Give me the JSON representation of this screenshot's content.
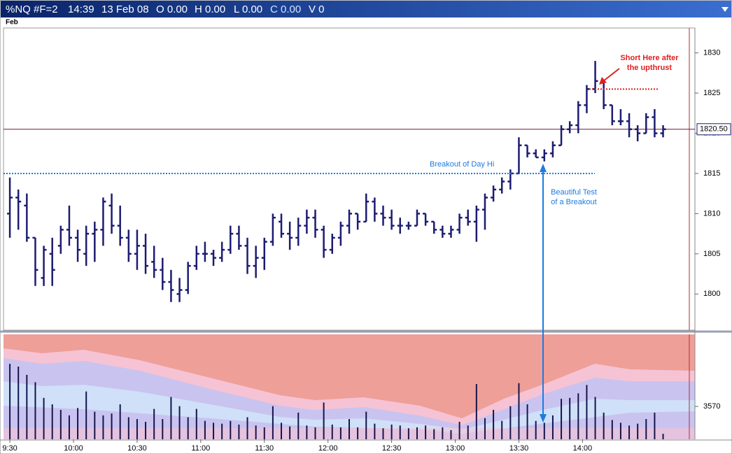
{
  "header": {
    "symbol": "%NQ #F=2",
    "time": "14:39",
    "date": "13 Feb 08",
    "fields": [
      "O 0.00",
      "H 0.00",
      "L 0.00",
      "C 0.00",
      "V 0"
    ]
  },
  "period_label": "Feb",
  "chart_data": [
    {
      "type": "ohlc",
      "color": "#1c1c72",
      "x": [
        570,
        574,
        578,
        582,
        586,
        590,
        594,
        598,
        602,
        606,
        610,
        614,
        618,
        622,
        626,
        630,
        634,
        638,
        642,
        646,
        650,
        654,
        658,
        662,
        666,
        670,
        674,
        678,
        682,
        686,
        690,
        694,
        698,
        702,
        706,
        710,
        714,
        718,
        722,
        726,
        730,
        734,
        738,
        742,
        746,
        750,
        754,
        758,
        762,
        766,
        770,
        774,
        778,
        782,
        786,
        790,
        794,
        798,
        802,
        806,
        810,
        814,
        818,
        822,
        826,
        830,
        834,
        838,
        842,
        846,
        850,
        854,
        858,
        862,
        866,
        870,
        874,
        878
      ],
      "open": [
        1810,
        1812,
        1811,
        1807,
        1802,
        1805,
        1806,
        1808,
        1807,
        1805,
        1807.5,
        1808,
        1811,
        1808.5,
        1807,
        1805,
        1806,
        1804,
        1803,
        1801.5,
        1800,
        1800.5,
        1803.5,
        1805,
        1805,
        1804.5,
        1805.5,
        1807.5,
        1806,
        1803.5,
        1804.5,
        1806.5,
        1809,
        1807.5,
        1807,
        1808.5,
        1809.5,
        1808,
        1805.5,
        1807,
        1808.5,
        1810,
        1809,
        1811.5,
        1810,
        1809.5,
        1808.5,
        1808.5,
        1808.5,
        1810,
        1809,
        1808,
        1807.5,
        1808,
        1809.5,
        1809,
        1810.5,
        1812,
        1813,
        1814,
        1815,
        1818.5,
        1817.5,
        1817,
        1817.5,
        1818.5,
        1820.5,
        1821,
        1823.5,
        1825.5,
        1826.5,
        1823.5,
        1821.5,
        1821.5,
        1820.5,
        1820,
        1822,
        1820
      ],
      "high": [
        1814.5,
        1813,
        1812.5,
        1807,
        1806,
        1807,
        1808.5,
        1811,
        1808,
        1808.5,
        1809,
        1812,
        1812.5,
        1811,
        1808,
        1808,
        1807.5,
        1806,
        1804.5,
        1803,
        1802,
        1804,
        1806,
        1806.5,
        1805.5,
        1806.5,
        1808.5,
        1808.5,
        1807,
        1806,
        1807,
        1810,
        1810,
        1809,
        1809.5,
        1810.5,
        1810.5,
        1808.5,
        1807.5,
        1809,
        1810.5,
        1810,
        1812.5,
        1812,
        1811,
        1810.5,
        1809.5,
        1809,
        1810.5,
        1810,
        1809,
        1808.5,
        1808.5,
        1810,
        1810.5,
        1811,
        1812.5,
        1813.5,
        1814.5,
        1815.5,
        1819.5,
        1818.5,
        1818,
        1818,
        1819,
        1821,
        1821.5,
        1824,
        1826,
        1829,
        1826.5,
        1823.5,
        1823,
        1822.5,
        1821,
        1822.5,
        1823,
        1821
      ],
      "low": [
        1807,
        1808,
        1806.5,
        1801,
        1801,
        1801,
        1805,
        1806,
        1804,
        1803.5,
        1804,
        1806,
        1807.5,
        1806,
        1804,
        1803,
        1802.5,
        1802,
        1800.5,
        1799,
        1799,
        1800,
        1803,
        1804,
        1803.5,
        1804,
        1805,
        1805.5,
        1802.5,
        1802,
        1803,
        1806,
        1807,
        1805.5,
        1806,
        1807.5,
        1807,
        1804.5,
        1805,
        1806,
        1807.5,
        1808,
        1809,
        1809,
        1808.5,
        1808,
        1807.5,
        1808,
        1808.5,
        1808.5,
        1807.5,
        1807,
        1807,
        1807.5,
        1808.5,
        1806.5,
        1808,
        1811.5,
        1812.5,
        1813,
        1815,
        1817,
        1817,
        1816.5,
        1817,
        1818.5,
        1820,
        1820,
        1822.5,
        1825,
        1823,
        1821,
        1821,
        1819.5,
        1819,
        1820,
        1819.5,
        1819.5
      ],
      "close": [
        1812,
        1811.5,
        1807,
        1803,
        1805.5,
        1803,
        1808,
        1807,
        1805.5,
        1807.5,
        1808,
        1811.5,
        1808.5,
        1807,
        1805,
        1806,
        1803.5,
        1803,
        1801.5,
        1800.5,
        1800.5,
        1803.5,
        1805,
        1805,
        1804.5,
        1805.5,
        1807.5,
        1806,
        1803.5,
        1804.5,
        1806.5,
        1809.5,
        1807.5,
        1807,
        1808.5,
        1809.5,
        1808,
        1805.5,
        1807,
        1808.5,
        1810,
        1809,
        1811.5,
        1810,
        1809.5,
        1808.5,
        1808.5,
        1808.5,
        1810,
        1809,
        1808,
        1807.5,
        1808,
        1809.5,
        1809,
        1810.5,
        1812,
        1813,
        1814,
        1815,
        1818.5,
        1817.5,
        1817,
        1817.5,
        1818.5,
        1820.5,
        1821,
        1823.5,
        1825.5,
        1826.5,
        1823.5,
        1821.5,
        1821.5,
        1820.5,
        1820,
        1822,
        1820,
        1820.5
      ],
      "xlim": [
        567,
        893
      ],
      "ylim": [
        1795.5,
        1833.1
      ],
      "yticks": [
        1800,
        1805,
        1810,
        1815,
        1820,
        1825,
        1830
      ],
      "last_price": {
        "value": 1820.5,
        "label": "1820.50"
      },
      "annotations": [
        {
          "text": "Breakout of Day Hi",
          "value": 1815,
          "color": "#1e7be0"
        },
        {
          "text": [
            "Beautiful Test",
            "of a Breakout"
          ],
          "color": "#1e7be0"
        },
        {
          "text": [
            "Short Here after",
            "the upthrust"
          ],
          "value": 1825.5,
          "color": "#e02020"
        }
      ]
    },
    {
      "type": "bar",
      "color": "#15154a",
      "x": [
        570,
        574,
        578,
        582,
        586,
        590,
        594,
        598,
        602,
        606,
        610,
        614,
        618,
        622,
        626,
        630,
        634,
        638,
        642,
        646,
        650,
        654,
        658,
        662,
        666,
        670,
        674,
        678,
        682,
        686,
        690,
        694,
        698,
        702,
        706,
        710,
        714,
        718,
        722,
        726,
        730,
        734,
        738,
        742,
        746,
        750,
        754,
        758,
        762,
        766,
        770,
        774,
        778,
        782,
        786,
        790,
        794,
        798,
        802,
        806,
        810,
        814,
        818,
        822,
        826,
        830,
        834,
        838,
        842,
        846,
        850,
        854,
        858,
        862,
        866,
        870,
        874,
        878
      ],
      "values": [
        8200,
        7900,
        7000,
        6200,
        4500,
        3800,
        3200,
        2600,
        3400,
        5200,
        3000,
        2600,
        2800,
        3800,
        2400,
        2200,
        1900,
        3300,
        2200,
        4600,
        3600,
        2400,
        3300,
        2000,
        1800,
        1700,
        2000,
        1600,
        2400,
        1500,
        1300,
        3600,
        1800,
        1400,
        2900,
        1500,
        1300,
        4000,
        1600,
        1300,
        2200,
        1300,
        3000,
        1700,
        1200,
        1600,
        1500,
        1200,
        1300,
        1500,
        1100,
        1300,
        1000,
        1900,
        1500,
        6000,
        2300,
        3200,
        2000,
        3600,
        6100,
        3800,
        2000,
        1800,
        2600,
        4400,
        4500,
        5000,
        5900,
        4600,
        2900,
        2100,
        1800,
        1500,
        1700,
        2200,
        2900,
        600
      ],
      "xlim": [
        567,
        893
      ],
      "ylim": [
        0,
        11400
      ],
      "yticks": [
        3570
      ],
      "xticks": [
        {
          "value": 570,
          "label": "9:30"
        },
        {
          "value": 600,
          "label": "10:00"
        },
        {
          "value": 630,
          "label": "10:30"
        },
        {
          "value": 660,
          "label": "11:00"
        },
        {
          "value": 690,
          "label": "11:30"
        },
        {
          "value": 720,
          "label": "12:00"
        },
        {
          "value": 750,
          "label": "12:30"
        },
        {
          "value": 780,
          "label": "13:00"
        },
        {
          "value": 810,
          "label": "13:30"
        },
        {
          "value": 840,
          "label": "14:00"
        }
      ]
    }
  ]
}
